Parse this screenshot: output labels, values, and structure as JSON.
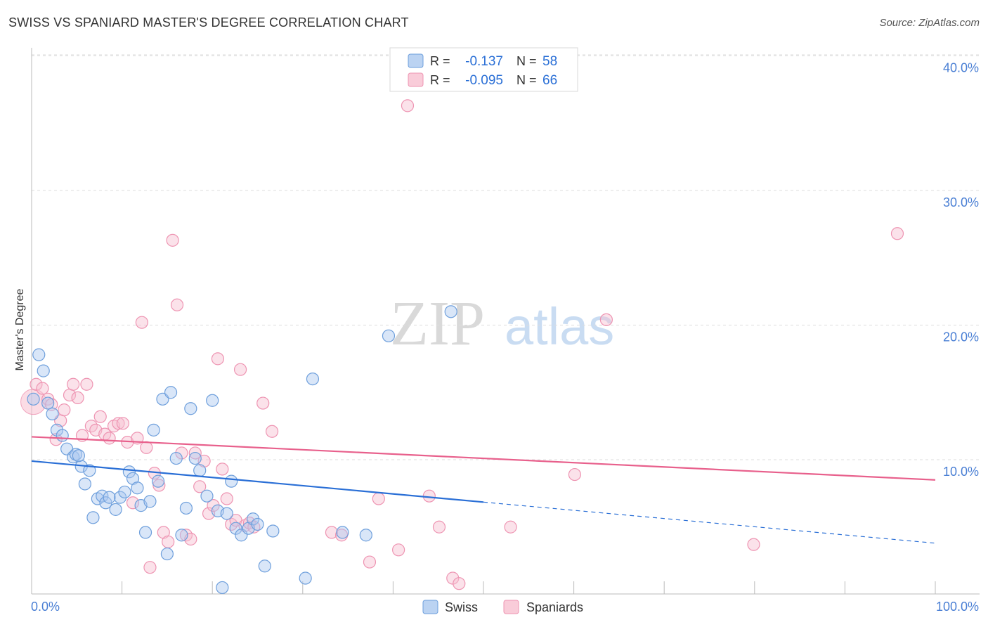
{
  "title": "SWISS VS SPANIARD MASTER'S DEGREE CORRELATION CHART",
  "source": "Source: ZipAtlas.com",
  "watermark": {
    "zip": "ZIP",
    "atlas": "atlas"
  },
  "colors": {
    "swiss_fill": "#aac8ef",
    "swiss_stroke": "#6e9fdc",
    "swiss_line": "#2a6fd6",
    "spaniards_fill": "#f7bfd0",
    "spaniards_stroke": "#ee94b2",
    "spaniards_line": "#e8608c",
    "tick_label": "#4a7fd4",
    "grid": "#dddddd"
  },
  "legend": {
    "rows": [
      {
        "r_label": "R =",
        "r_value": "-0.137",
        "n_label": "N =",
        "n_value": "58"
      },
      {
        "r_label": "R =",
        "r_value": "-0.095",
        "n_label": "N =",
        "n_value": "66"
      }
    ]
  },
  "chart_data": {
    "type": "scatter",
    "title": "SWISS VS SPANIARD MASTER'S DEGREE CORRELATION CHART",
    "xlabel": "",
    "ylabel": "Master's Degree",
    "xlim": [
      0,
      100
    ],
    "ylim": [
      0,
      42
    ],
    "x_tick_labels": [
      "0.0%",
      "100.0%"
    ],
    "y_ticks": [
      10,
      20,
      30,
      40
    ],
    "y_tick_labels": [
      "10.0%",
      "20.0%",
      "30.0%",
      "40.0%"
    ],
    "grid": "horizontal dashed",
    "legend_position": "bottom-center",
    "series": [
      {
        "name": "Swiss",
        "color": "#aac8ef",
        "trend": {
          "x": [
            0,
            100
          ],
          "y": [
            9.9,
            3.8
          ],
          "solid_until_x": 50
        },
        "points": [
          [
            0.8,
            17.8
          ],
          [
            1.3,
            16.6
          ],
          [
            1.8,
            14.2
          ],
          [
            2.3,
            13.4
          ],
          [
            2.8,
            12.2
          ],
          [
            3.4,
            11.8
          ],
          [
            3.9,
            10.8
          ],
          [
            4.6,
            10.2
          ],
          [
            4.9,
            10.4
          ],
          [
            5.5,
            9.5
          ],
          [
            5.9,
            8.2
          ],
          [
            6.4,
            9.2
          ],
          [
            6.8,
            5.7
          ],
          [
            7.3,
            7.1
          ],
          [
            7.8,
            7.3
          ],
          [
            8.2,
            6.8
          ],
          [
            8.6,
            7.2
          ],
          [
            9.3,
            6.3
          ],
          [
            9.8,
            7.2
          ],
          [
            10.3,
            7.6
          ],
          [
            10.8,
            9.1
          ],
          [
            11.2,
            8.6
          ],
          [
            11.7,
            7.9
          ],
          [
            12.1,
            6.6
          ],
          [
            12.6,
            4.6
          ],
          [
            13.1,
            6.9
          ],
          [
            13.5,
            12.2
          ],
          [
            14.0,
            8.4
          ],
          [
            14.5,
            14.5
          ],
          [
            15.0,
            3.0
          ],
          [
            15.4,
            15.0
          ],
          [
            16.0,
            10.1
          ],
          [
            16.6,
            4.4
          ],
          [
            17.1,
            6.4
          ],
          [
            17.6,
            13.8
          ],
          [
            18.1,
            10.1
          ],
          [
            18.6,
            9.2
          ],
          [
            19.4,
            7.3
          ],
          [
            20.0,
            14.4
          ],
          [
            20.6,
            6.2
          ],
          [
            21.1,
            0.5
          ],
          [
            21.6,
            6.0
          ],
          [
            22.1,
            8.4
          ],
          [
            22.6,
            4.9
          ],
          [
            23.2,
            4.4
          ],
          [
            24.0,
            4.9
          ],
          [
            24.5,
            5.6
          ],
          [
            25.0,
            5.2
          ],
          [
            25.8,
            2.1
          ],
          [
            26.7,
            4.7
          ],
          [
            30.3,
            1.2
          ],
          [
            31.1,
            16.0
          ],
          [
            34.4,
            4.6
          ],
          [
            37.0,
            4.4
          ],
          [
            39.5,
            19.2
          ],
          [
            46.4,
            21.0
          ],
          [
            0.2,
            14.5
          ],
          [
            5.2,
            10.3
          ]
        ]
      },
      {
        "name": "Spaniards",
        "color": "#f7bfd0",
        "trend": {
          "x": [
            0,
            100
          ],
          "y": [
            11.7,
            8.5
          ]
        },
        "points": [
          [
            0.5,
            15.6
          ],
          [
            1.2,
            15.3
          ],
          [
            1.8,
            14.5
          ],
          [
            2.2,
            14.1
          ],
          [
            2.7,
            11.5
          ],
          [
            3.2,
            12.9
          ],
          [
            3.6,
            13.7
          ],
          [
            4.2,
            14.8
          ],
          [
            4.6,
            15.6
          ],
          [
            5.1,
            14.6
          ],
          [
            5.6,
            11.8
          ],
          [
            6.1,
            15.6
          ],
          [
            6.6,
            12.5
          ],
          [
            7.1,
            12.2
          ],
          [
            7.6,
            13.2
          ],
          [
            8.1,
            11.9
          ],
          [
            8.6,
            11.6
          ],
          [
            9.1,
            12.5
          ],
          [
            9.6,
            12.7
          ],
          [
            10.1,
            12.7
          ],
          [
            10.6,
            11.3
          ],
          [
            11.2,
            6.8
          ],
          [
            11.7,
            11.6
          ],
          [
            12.2,
            20.2
          ],
          [
            12.7,
            10.9
          ],
          [
            13.1,
            2.0
          ],
          [
            13.6,
            9.0
          ],
          [
            14.1,
            8.1
          ],
          [
            14.6,
            4.6
          ],
          [
            15.1,
            3.9
          ],
          [
            15.6,
            26.3
          ],
          [
            16.1,
            21.5
          ],
          [
            16.6,
            10.5
          ],
          [
            17.1,
            4.4
          ],
          [
            17.6,
            4.1
          ],
          [
            18.1,
            10.5
          ],
          [
            18.6,
            8.0
          ],
          [
            19.1,
            9.9
          ],
          [
            19.6,
            6.0
          ],
          [
            20.1,
            6.6
          ],
          [
            20.6,
            17.5
          ],
          [
            21.1,
            9.3
          ],
          [
            21.6,
            7.1
          ],
          [
            22.1,
            5.2
          ],
          [
            22.6,
            5.5
          ],
          [
            23.1,
            16.7
          ],
          [
            23.6,
            5.1
          ],
          [
            24.1,
            5.3
          ],
          [
            24.6,
            5.0
          ],
          [
            25.6,
            14.2
          ],
          [
            26.6,
            12.1
          ],
          [
            33.2,
            4.6
          ],
          [
            34.3,
            4.4
          ],
          [
            37.4,
            2.4
          ],
          [
            38.4,
            7.1
          ],
          [
            40.6,
            3.3
          ],
          [
            41.6,
            36.3
          ],
          [
            44.0,
            7.3
          ],
          [
            45.1,
            5.0
          ],
          [
            46.6,
            1.2
          ],
          [
            47.3,
            0.8
          ],
          [
            53.0,
            5.0
          ],
          [
            60.1,
            8.9
          ],
          [
            63.6,
            20.4
          ],
          [
            79.9,
            3.7
          ],
          [
            95.8,
            26.8
          ]
        ]
      }
    ]
  },
  "bottom_legend": {
    "swiss": "Swiss",
    "spaniards": "Spaniards"
  }
}
